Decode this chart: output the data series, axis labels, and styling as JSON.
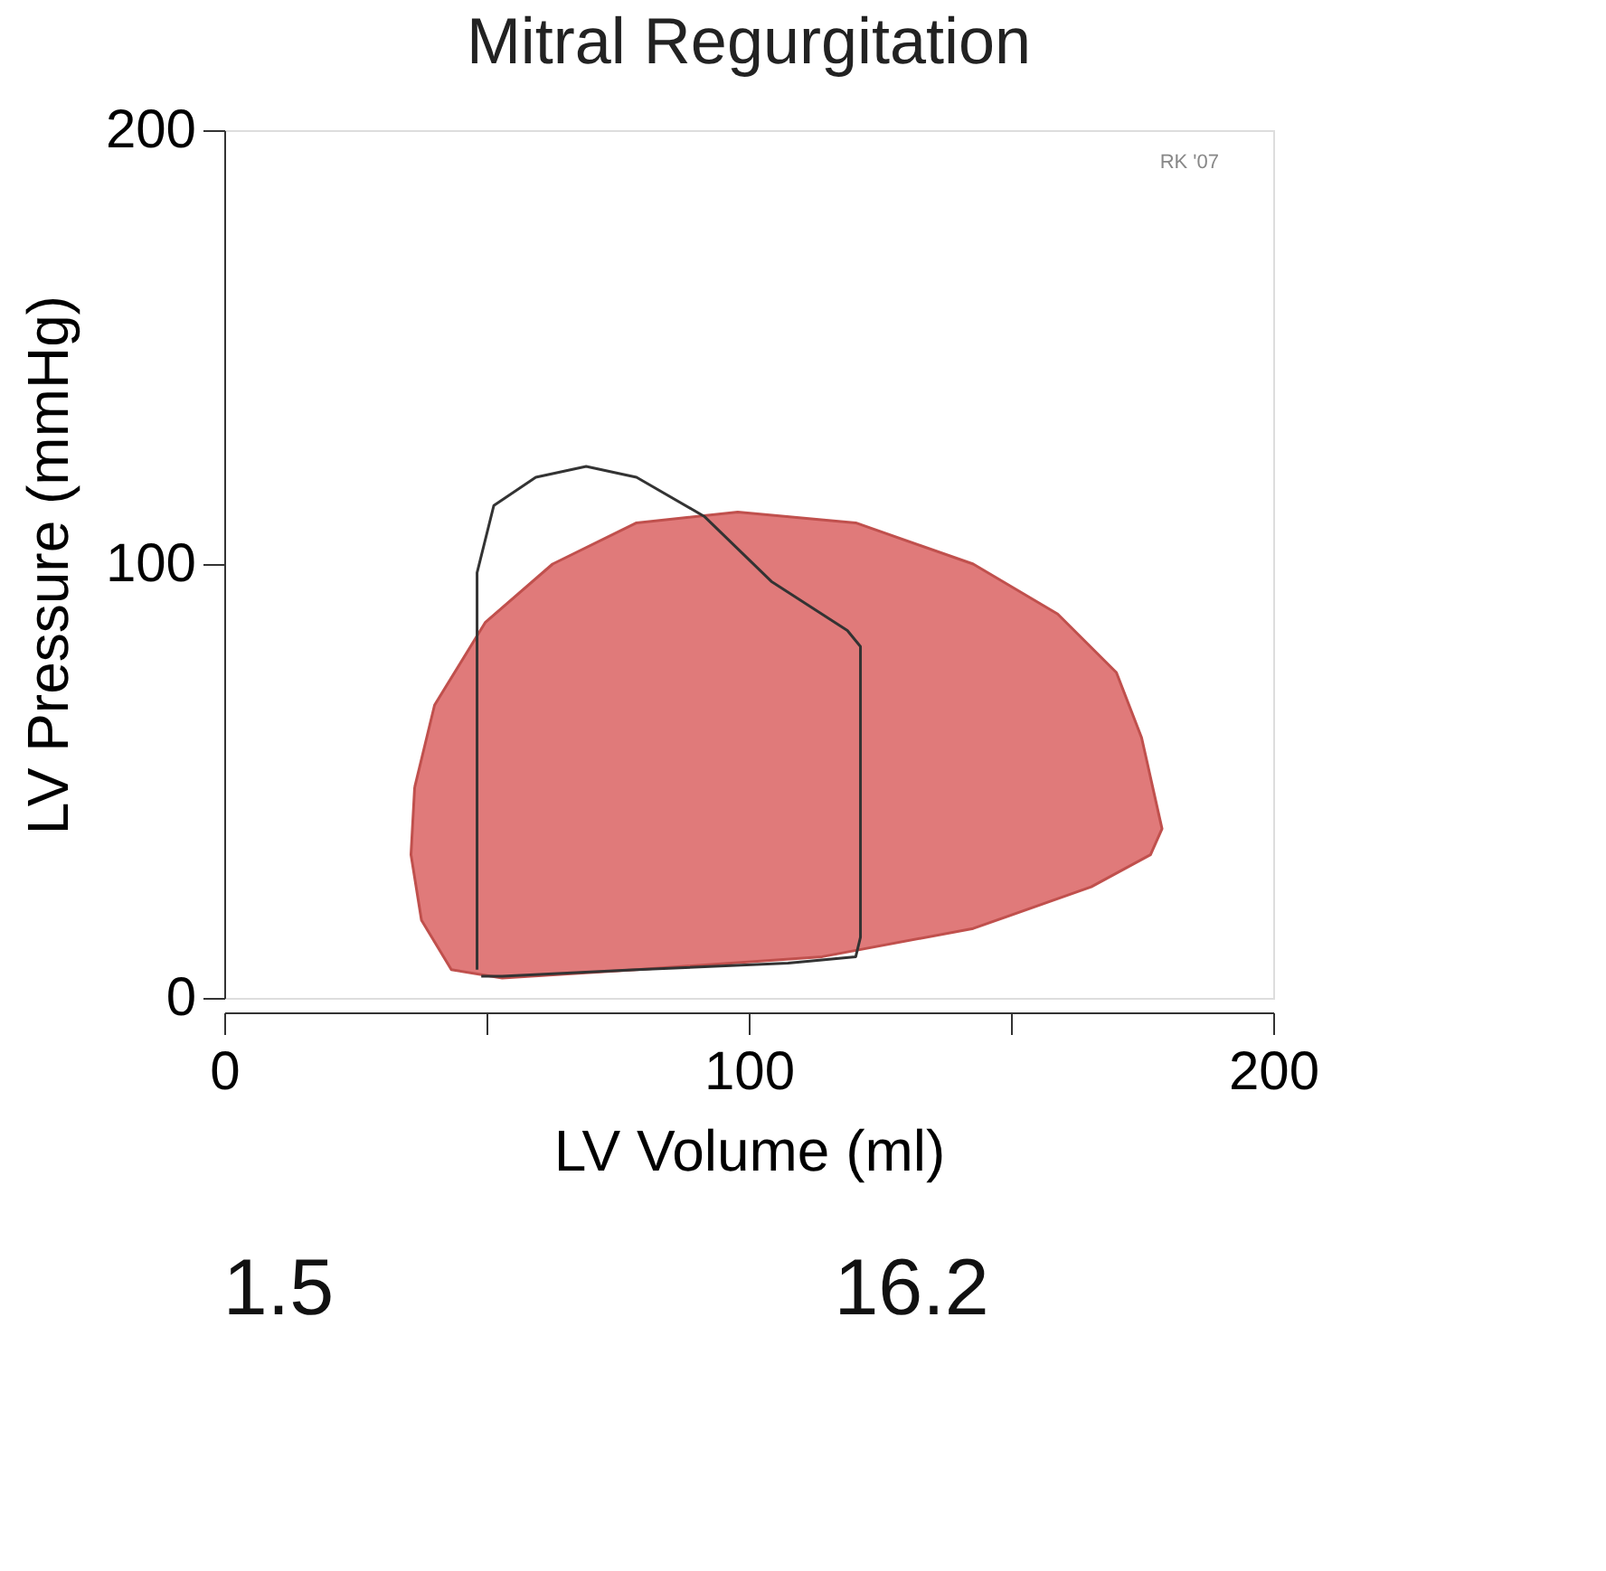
{
  "chart_data": {
    "type": "line",
    "title": "Mitral Regurgitation",
    "xlabel": "LV  Volume (ml)",
    "ylabel": "LV  Pressure (mmHg)",
    "xlim": [
      0,
      200
    ],
    "xticks": [
      0,
      {
        "value": 50,
        "label": null
      },
      100,
      {
        "value": 150,
        "label": null
      },
      200
    ],
    "ylim": [
      0,
      200
    ],
    "yticks": [
      0,
      100,
      200
    ],
    "grid": false,
    "marker": "none",
    "line_style": "solid",
    "series": [
      {
        "type": "area",
        "color": "#e07a7a",
        "x": [
          36.3,
          40.1,
          49.8,
          62.6,
          78.6,
          97.9,
          120.4,
          142.8,
          158.9,
          170.1,
          174.9,
          178.8,
          176.6,
          165.3,
          142.8,
          114,
          78.6,
          53,
          43.3,
          37.6,
          35.6
        ],
        "values": [
          48.5,
          67.5,
          86.6,
          100,
          109.5,
          112,
          109.5,
          100,
          88.5,
          75,
          60,
          39,
          33,
          25.6,
          16,
          9.5,
          6.5,
          4.6,
          6.5,
          17.9,
          33
        ]
      },
      {
        "color": "#333333",
        "x": [
          48.2,
          48.2,
          51.4,
          59.4,
          69,
          78.6,
          91.5,
          104.3,
          118.8,
          121.3,
          121.3,
          120.4,
          107.5,
          78.6,
          53,
          49
        ],
        "values": [
          6.5,
          98,
          113.5,
          120,
          122.5,
          120,
          111,
          96,
          84.7,
          81,
          14,
          9.5,
          8,
          6.5,
          5,
          5
        ]
      }
    ],
    "annotations": [
      "RK '07",
      "1.5",
      "16.2"
    ]
  }
}
